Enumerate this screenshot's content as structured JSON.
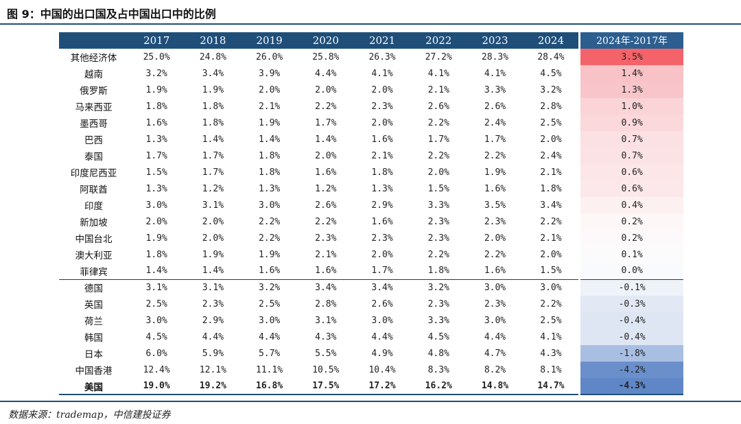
{
  "title": "图 9：中国的出口国及占中国出口中的比例",
  "source": "数据来源：trademap，中信建投证券",
  "columns": [
    "",
    "2017",
    "2018",
    "2019",
    "2020",
    "2021",
    "2022",
    "2023",
    "2024",
    "2024年-2017年"
  ],
  "rows": [
    {
      "name": "其他经济体",
      "values": [
        "25.0%",
        "24.8%",
        "26.0%",
        "25.8%",
        "26.3%",
        "27.2%",
        "28.3%",
        "28.4%"
      ],
      "diff": "3.5%",
      "color": "#f4636a"
    },
    {
      "name": "越南",
      "values": [
        "3.2%",
        "3.4%",
        "3.9%",
        "4.4%",
        "4.1%",
        "4.1%",
        "4.1%",
        "4.5%"
      ],
      "diff": "1.4%",
      "color": "#f8c2c6"
    },
    {
      "name": "俄罗斯",
      "values": [
        "1.9%",
        "1.9%",
        "2.0%",
        "2.0%",
        "2.0%",
        "2.1%",
        "3.3%",
        "3.2%"
      ],
      "diff": "1.3%",
      "color": "#f8c6ca"
    },
    {
      "name": "马来西亚",
      "values": [
        "1.8%",
        "1.8%",
        "2.1%",
        "2.2%",
        "2.3%",
        "2.6%",
        "2.6%",
        "2.8%"
      ],
      "diff": "1.0%",
      "color": "#fad4d7"
    },
    {
      "name": "墨西哥",
      "values": [
        "1.6%",
        "1.8%",
        "1.9%",
        "1.7%",
        "2.0%",
        "2.2%",
        "2.4%",
        "2.5%"
      ],
      "diff": "0.9%",
      "color": "#fad8db"
    },
    {
      "name": "巴西",
      "values": [
        "1.3%",
        "1.4%",
        "1.4%",
        "1.4%",
        "1.6%",
        "1.7%",
        "1.7%",
        "2.0%"
      ],
      "diff": "0.7%",
      "color": "#fbe1e3"
    },
    {
      "name": "泰国",
      "values": [
        "1.7%",
        "1.7%",
        "1.8%",
        "2.0%",
        "2.1%",
        "2.2%",
        "2.2%",
        "2.4%"
      ],
      "diff": "0.7%",
      "color": "#fbe2e4"
    },
    {
      "name": "印度尼西亚",
      "values": [
        "1.5%",
        "1.7%",
        "1.8%",
        "1.6%",
        "1.8%",
        "2.0%",
        "1.9%",
        "2.1%"
      ],
      "diff": "0.6%",
      "color": "#fce6e8"
    },
    {
      "name": "阿联酋",
      "values": [
        "1.3%",
        "1.2%",
        "1.3%",
        "1.2%",
        "1.3%",
        "1.5%",
        "1.6%",
        "1.8%"
      ],
      "diff": "0.6%",
      "color": "#fce8ea"
    },
    {
      "name": "印度",
      "values": [
        "3.0%",
        "3.1%",
        "3.0%",
        "2.6%",
        "2.9%",
        "3.3%",
        "3.5%",
        "3.4%"
      ],
      "diff": "0.4%",
      "color": "#fdf0f1"
    },
    {
      "name": "新加坡",
      "values": [
        "2.0%",
        "2.0%",
        "2.2%",
        "2.2%",
        "1.6%",
        "2.3%",
        "2.3%",
        "2.2%"
      ],
      "diff": "0.2%",
      "color": "#fdf7f8"
    },
    {
      "name": "中国台北",
      "values": [
        "1.9%",
        "2.0%",
        "2.2%",
        "2.3%",
        "2.3%",
        "2.3%",
        "2.0%",
        "2.1%"
      ],
      "diff": "0.2%",
      "color": "#fdf8f9"
    },
    {
      "name": "澳大利亚",
      "values": [
        "1.8%",
        "1.9%",
        "1.9%",
        "2.1%",
        "2.0%",
        "2.2%",
        "2.2%",
        "2.0%"
      ],
      "diff": "0.1%",
      "color": "#fcfbfc"
    },
    {
      "name": "菲律宾",
      "values": [
        "1.4%",
        "1.4%",
        "1.6%",
        "1.6%",
        "1.7%",
        "1.8%",
        "1.6%",
        "1.5%"
      ],
      "diff": "0.0%",
      "color": "#f9fafd"
    },
    {
      "name": "德国",
      "values": [
        "3.1%",
        "3.1%",
        "3.2%",
        "3.4%",
        "3.4%",
        "3.2%",
        "3.0%",
        "3.0%"
      ],
      "diff": "-0.1%",
      "color": "#eef2f9"
    },
    {
      "name": "英国",
      "values": [
        "2.5%",
        "2.3%",
        "2.5%",
        "2.8%",
        "2.6%",
        "2.3%",
        "2.3%",
        "2.2%"
      ],
      "diff": "-0.3%",
      "color": "#e3e9f4"
    },
    {
      "name": "荷兰",
      "values": [
        "3.0%",
        "2.9%",
        "3.0%",
        "3.1%",
        "3.0%",
        "3.3%",
        "3.0%",
        "2.5%"
      ],
      "diff": "-0.4%",
      "color": "#dfe6f3"
    },
    {
      "name": "韩国",
      "values": [
        "4.5%",
        "4.4%",
        "4.4%",
        "4.3%",
        "4.4%",
        "4.5%",
        "4.4%",
        "4.1%"
      ],
      "diff": "-0.4%",
      "color": "#dfe6f3"
    },
    {
      "name": "日本",
      "values": [
        "6.0%",
        "5.9%",
        "5.7%",
        "5.5%",
        "4.9%",
        "4.8%",
        "4.7%",
        "4.3%"
      ],
      "diff": "-1.8%",
      "color": "#a9bfe2"
    },
    {
      "name": "中国香港",
      "values": [
        "12.4%",
        "12.1%",
        "11.1%",
        "10.5%",
        "10.4%",
        "8.3%",
        "8.2%",
        "8.1%"
      ],
      "diff": "-4.2%",
      "color": "#6a8fcb"
    },
    {
      "name": "美国",
      "values": [
        "19.0%",
        "19.2%",
        "16.8%",
        "17.5%",
        "17.2%",
        "16.2%",
        "14.8%",
        "14.7%"
      ],
      "diff": "-4.3%",
      "color": "#5f87c8"
    }
  ]
}
